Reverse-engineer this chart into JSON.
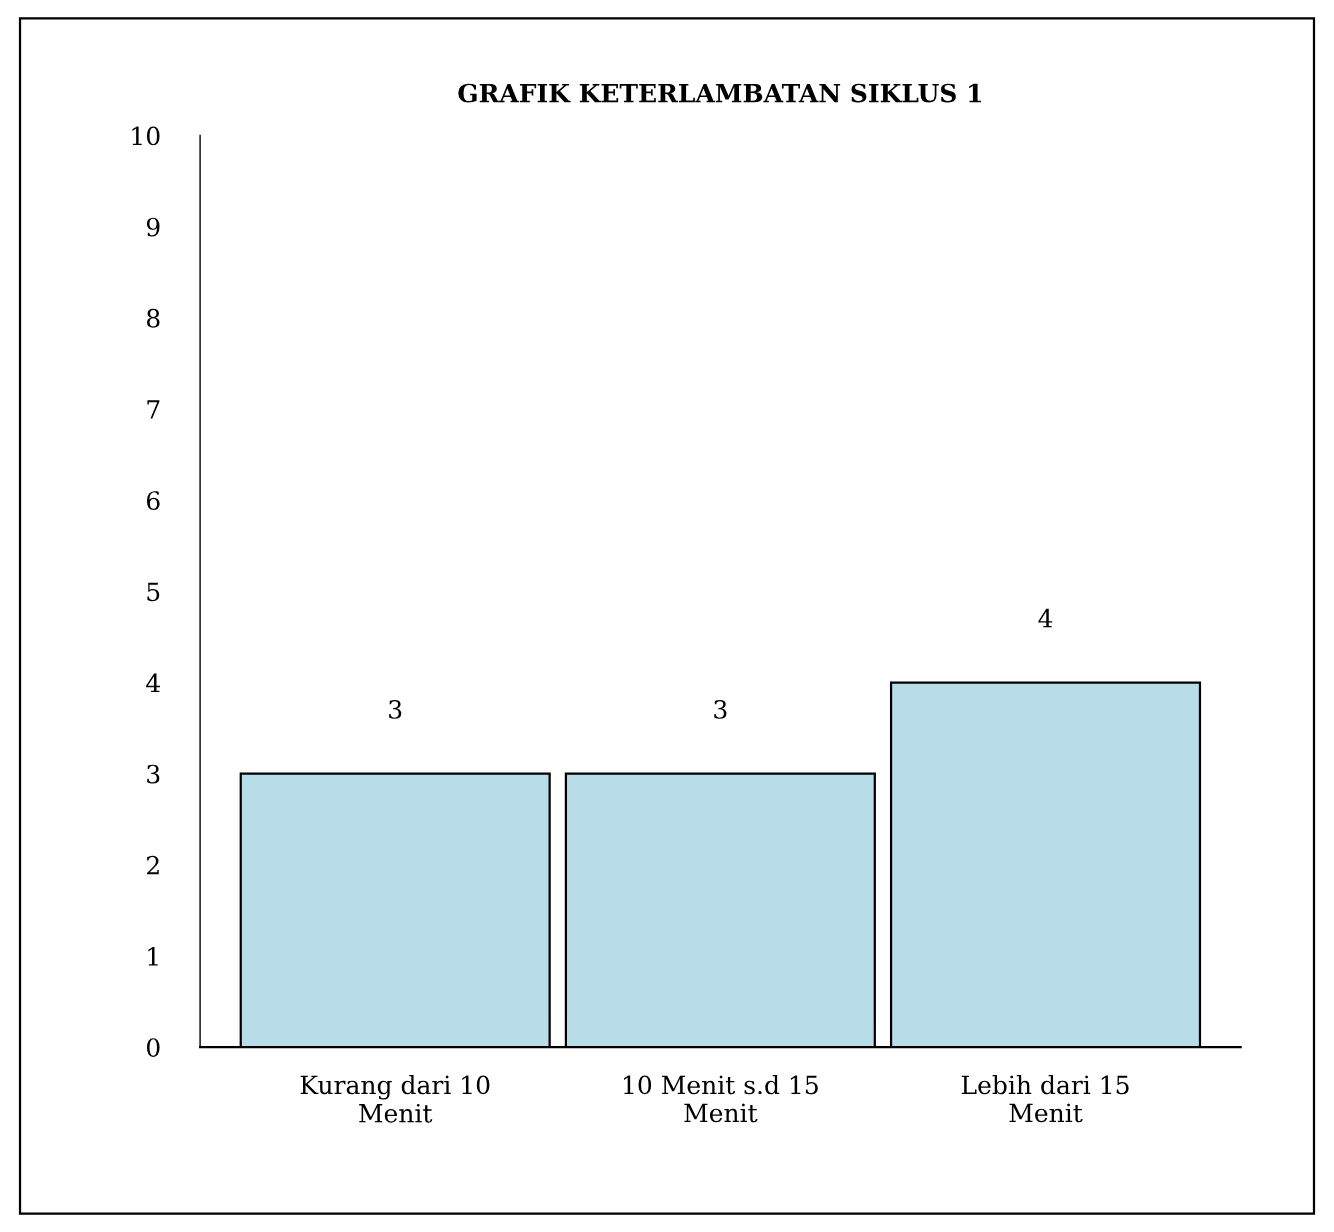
{
  "chart_data": {
    "type": "bar",
    "title": "GRAFIK KETERLAMBATAN SIKLUS 1",
    "categories": [
      "Kurang dari 10\nMenit",
      "10 Menit s.d 15\nMenit",
      "Lebih dari 15\nMenit"
    ],
    "values": [
      3,
      3,
      4
    ],
    "color": "#b7dde8",
    "ylim": [
      0,
      10
    ],
    "yticks": [
      0,
      1,
      2,
      3,
      4,
      5,
      6,
      7,
      8,
      9,
      10
    ],
    "data_labels": true,
    "grid": false,
    "legend": false
  }
}
